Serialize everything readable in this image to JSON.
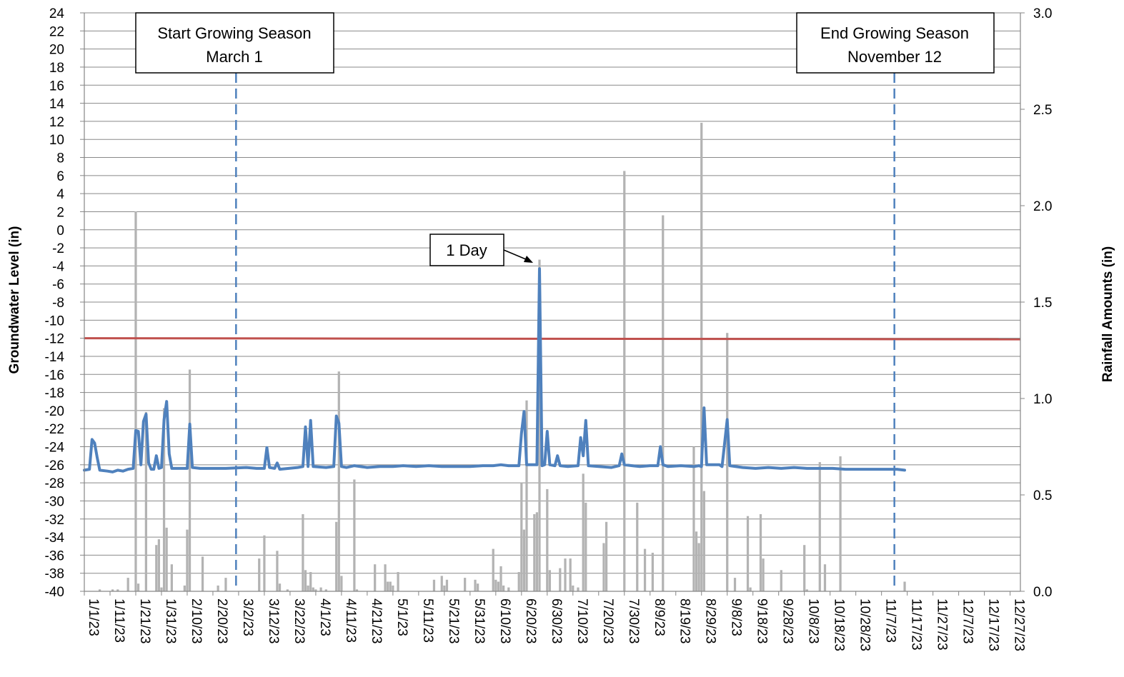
{
  "chart_data": {
    "type": "line",
    "x_axis": {
      "scale": "date",
      "min": "2023-01-01",
      "max": "2023-12-31",
      "tick_labels": [
        "1/1/23",
        "1/11/23",
        "1/21/23",
        "1/31/23",
        "2/10/23",
        "2/20/23",
        "3/2/23",
        "3/12/23",
        "3/22/23",
        "4/1/23",
        "4/11/23",
        "4/21/23",
        "5/1/23",
        "5/11/23",
        "5/21/23",
        "5/31/23",
        "6/10/23",
        "6/20/23",
        "6/30/23",
        "7/10/23",
        "7/20/23",
        "7/30/23",
        "8/9/23",
        "8/19/23",
        "8/29/23",
        "9/8/23",
        "9/18/23",
        "9/28/23",
        "10/8/23",
        "10/18/23",
        "10/28/23",
        "11/7/23",
        "11/17/23",
        "11/27/23",
        "12/7/23",
        "12/17/23",
        "12/27/23"
      ]
    },
    "y_axis_left": {
      "label": "Groundwater Level (in)",
      "min": -40,
      "max": 24,
      "tick_labels": [
        "24",
        "22",
        "20",
        "18",
        "16",
        "14",
        "12",
        "10",
        "8",
        "6",
        "4",
        "2",
        "0",
        "-2",
        "-4",
        "-6",
        "-8",
        "-10",
        "-12",
        "-14",
        "-16",
        "-18",
        "-20",
        "-22",
        "-24",
        "-26",
        "-28",
        "-30",
        "-32",
        "-34",
        "-36",
        "-38",
        "-40"
      ]
    },
    "y_axis_right": {
      "label": "Rainfall Amounts (in)",
      "min": 0,
      "max": 3.0,
      "tick_labels": [
        "3.0",
        "2.5",
        "2.0",
        "1.5",
        "1.0",
        "0.5",
        "0.0"
      ]
    },
    "grid": true,
    "reference_line": {
      "y": -12,
      "color": "#c0504d"
    },
    "annotations": [
      {
        "lines": [
          "Start Growing Season",
          "March 1"
        ],
        "date": "2023-03-01"
      },
      {
        "lines": [
          "End Growing Season",
          "November 12"
        ],
        "date": "2023-11-12"
      },
      {
        "text": "1 Day",
        "date": "2023-06-27",
        "y": -4
      }
    ],
    "colors": {
      "groundwater": "#4f81bd",
      "rainfall": "#b3b3b3",
      "reference": "#c0504d",
      "season_marker": "#4f81bd",
      "grid": "#898989"
    },
    "groundwater": [
      [
        "2023-01-01",
        -26.6
      ],
      [
        "2023-01-03",
        -26.5
      ],
      [
        "2023-01-04",
        -23.2
      ],
      [
        "2023-01-05",
        -23.6
      ],
      [
        "2023-01-06",
        -25.2
      ],
      [
        "2023-01-07",
        -26.6
      ],
      [
        "2023-01-10",
        -26.7
      ],
      [
        "2023-01-12",
        -26.8
      ],
      [
        "2023-01-14",
        -26.6
      ],
      [
        "2023-01-16",
        -26.7
      ],
      [
        "2023-01-18",
        -26.5
      ],
      [
        "2023-01-20",
        -26.4
      ],
      [
        "2023-01-21",
        -22.2
      ],
      [
        "2023-01-22",
        -22.3
      ],
      [
        "2023-01-23",
        -26.0
      ],
      [
        "2023-01-24",
        -21.2
      ],
      [
        "2023-01-25",
        -20.4
      ],
      [
        "2023-01-26",
        -25.8
      ],
      [
        "2023-01-27",
        -26.5
      ],
      [
        "2023-01-28",
        -26.5
      ],
      [
        "2023-01-29",
        -25.0
      ],
      [
        "2023-01-30",
        -26.4
      ],
      [
        "2023-01-31",
        -26.3
      ],
      [
        "2023-02-01",
        -21.0
      ],
      [
        "2023-02-02",
        -19.0
      ],
      [
        "2023-02-03",
        -24.8
      ],
      [
        "2023-02-04",
        -26.4
      ],
      [
        "2023-02-08",
        -26.4
      ],
      [
        "2023-02-10",
        -26.4
      ],
      [
        "2023-02-11",
        -21.5
      ],
      [
        "2023-02-12",
        -26.3
      ],
      [
        "2023-02-15",
        -26.4
      ],
      [
        "2023-02-20",
        -26.4
      ],
      [
        "2023-02-25",
        -26.4
      ],
      [
        "2023-03-05",
        -26.3
      ],
      [
        "2023-03-09",
        -26.4
      ],
      [
        "2023-03-12",
        -26.4
      ],
      [
        "2023-03-13",
        -24.1
      ],
      [
        "2023-03-14",
        -26.3
      ],
      [
        "2023-03-16",
        -26.4
      ],
      [
        "2023-03-17",
        -25.8
      ],
      [
        "2023-03-18",
        -26.5
      ],
      [
        "2023-03-25",
        -26.3
      ],
      [
        "2023-03-27",
        -26.2
      ],
      [
        "2023-03-28",
        -21.8
      ],
      [
        "2023-03-29",
        -26.2
      ],
      [
        "2023-03-30",
        -21.1
      ],
      [
        "2023-03-31",
        -26.2
      ],
      [
        "2023-04-05",
        -26.3
      ],
      [
        "2023-04-08",
        -26.2
      ],
      [
        "2023-04-09",
        -20.6
      ],
      [
        "2023-04-10",
        -21.4
      ],
      [
        "2023-04-11",
        -26.2
      ],
      [
        "2023-04-13",
        -26.3
      ],
      [
        "2023-04-16",
        -26.1
      ],
      [
        "2023-04-21",
        -26.3
      ],
      [
        "2023-04-26",
        -26.2
      ],
      [
        "2023-05-01",
        -26.2
      ],
      [
        "2023-05-05",
        -26.1
      ],
      [
        "2023-05-10",
        -26.2
      ],
      [
        "2023-05-15",
        -26.1
      ],
      [
        "2023-05-20",
        -26.2
      ],
      [
        "2023-05-25",
        -26.2
      ],
      [
        "2023-05-31",
        -26.2
      ],
      [
        "2023-06-05",
        -26.1
      ],
      [
        "2023-06-09",
        -26.1
      ],
      [
        "2023-06-12",
        -26.0
      ],
      [
        "2023-06-15",
        -26.1
      ],
      [
        "2023-06-19",
        -26.1
      ],
      [
        "2023-06-20",
        -22.5
      ],
      [
        "2023-06-21",
        -20.1
      ],
      [
        "2023-06-22",
        -26.0
      ],
      [
        "2023-06-24",
        -26.0
      ],
      [
        "2023-06-26",
        -26.0
      ],
      [
        "2023-06-27",
        -4.3
      ],
      [
        "2023-06-28",
        -26.1
      ],
      [
        "2023-06-29",
        -26.0
      ],
      [
        "2023-06-30",
        -22.3
      ],
      [
        "2023-07-01",
        -26.0
      ],
      [
        "2023-07-03",
        -26.1
      ],
      [
        "2023-07-04",
        -25.0
      ],
      [
        "2023-07-05",
        -26.1
      ],
      [
        "2023-07-08",
        -26.2
      ],
      [
        "2023-07-12",
        -26.1
      ],
      [
        "2023-07-13",
        -23.0
      ],
      [
        "2023-07-14",
        -25.0
      ],
      [
        "2023-07-15",
        -21.1
      ],
      [
        "2023-07-16",
        -26.1
      ],
      [
        "2023-07-20",
        -26.2
      ],
      [
        "2023-07-25",
        -26.3
      ],
      [
        "2023-07-28",
        -26.1
      ],
      [
        "2023-07-29",
        -24.8
      ],
      [
        "2023-07-30",
        -26.0
      ],
      [
        "2023-08-02",
        -26.1
      ],
      [
        "2023-08-05",
        -26.2
      ],
      [
        "2023-08-09",
        -26.1
      ],
      [
        "2023-08-12",
        -26.1
      ],
      [
        "2023-08-13",
        -24.0
      ],
      [
        "2023-08-14",
        -26.0
      ],
      [
        "2023-08-16",
        -26.2
      ],
      [
        "2023-08-21",
        -26.1
      ],
      [
        "2023-08-26",
        -26.2
      ],
      [
        "2023-08-28",
        -26.1
      ],
      [
        "2023-08-29",
        -26.2
      ],
      [
        "2023-08-30",
        -19.7
      ],
      [
        "2023-08-31",
        -26.0
      ],
      [
        "2023-09-05",
        -26.0
      ],
      [
        "2023-09-06",
        -26.2
      ],
      [
        "2023-09-08",
        -21.0
      ],
      [
        "2023-09-09",
        -26.1
      ],
      [
        "2023-09-14",
        -26.3
      ],
      [
        "2023-09-19",
        -26.4
      ],
      [
        "2023-09-24",
        -26.3
      ],
      [
        "2023-09-29",
        -26.4
      ],
      [
        "2023-10-04",
        -26.3
      ],
      [
        "2023-10-09",
        -26.4
      ],
      [
        "2023-10-14",
        -26.4
      ],
      [
        "2023-10-19",
        -26.4
      ],
      [
        "2023-10-24",
        -26.5
      ],
      [
        "2023-10-29",
        -26.5
      ],
      [
        "2023-11-03",
        -26.5
      ],
      [
        "2023-11-08",
        -26.5
      ],
      [
        "2023-11-13",
        -26.5
      ],
      [
        "2023-11-16",
        -26.6
      ]
    ],
    "rainfall": [
      [
        "2023-01-07",
        0.01
      ],
      [
        "2023-01-12",
        0.01
      ],
      [
        "2023-01-14",
        0.01
      ],
      [
        "2023-01-18",
        0.07
      ],
      [
        "2023-01-21",
        1.97
      ],
      [
        "2023-01-22",
        0.04
      ],
      [
        "2023-01-25",
        0.93
      ],
      [
        "2023-01-29",
        0.24
      ],
      [
        "2023-01-30",
        0.27
      ],
      [
        "2023-01-31",
        0.02
      ],
      [
        "2023-02-01",
        0.95
      ],
      [
        "2023-02-02",
        0.33
      ],
      [
        "2023-02-04",
        0.14
      ],
      [
        "2023-02-09",
        0.03
      ],
      [
        "2023-02-10",
        0.32
      ],
      [
        "2023-02-11",
        1.15
      ],
      [
        "2023-02-16",
        0.18
      ],
      [
        "2023-02-22",
        0.03
      ],
      [
        "2023-02-25",
        0.07
      ],
      [
        "2023-03-10",
        0.17
      ],
      [
        "2023-03-12",
        0.29
      ],
      [
        "2023-03-17",
        0.21
      ],
      [
        "2023-03-18",
        0.04
      ],
      [
        "2023-03-21",
        0.01
      ],
      [
        "2023-03-27",
        0.4
      ],
      [
        "2023-03-28",
        0.11
      ],
      [
        "2023-03-29",
        0.03
      ],
      [
        "2023-03-30",
        0.1
      ],
      [
        "2023-03-31",
        0.02
      ],
      [
        "2023-04-01",
        0.01
      ],
      [
        "2023-04-03",
        0.02
      ],
      [
        "2023-04-05",
        0.01
      ],
      [
        "2023-04-09",
        0.36
      ],
      [
        "2023-04-10",
        1.14
      ],
      [
        "2023-04-11",
        0.08
      ],
      [
        "2023-04-16",
        0.58
      ],
      [
        "2023-04-17",
        0.01
      ],
      [
        "2023-04-24",
        0.14
      ],
      [
        "2023-04-28",
        0.14
      ],
      [
        "2023-04-29",
        0.05
      ],
      [
        "2023-04-30",
        0.05
      ],
      [
        "2023-05-01",
        0.03
      ],
      [
        "2023-05-03",
        0.1
      ],
      [
        "2023-05-17",
        0.06
      ],
      [
        "2023-05-20",
        0.08
      ],
      [
        "2023-05-21",
        0.03
      ],
      [
        "2023-05-22",
        0.06
      ],
      [
        "2023-05-29",
        0.07
      ],
      [
        "2023-06-02",
        0.06
      ],
      [
        "2023-06-03",
        0.04
      ],
      [
        "2023-06-09",
        0.22
      ],
      [
        "2023-06-10",
        0.06
      ],
      [
        "2023-06-11",
        0.05
      ],
      [
        "2023-06-12",
        0.13
      ],
      [
        "2023-06-13",
        0.03
      ],
      [
        "2023-06-15",
        0.02
      ],
      [
        "2023-06-19",
        0.1
      ],
      [
        "2023-06-20",
        0.56
      ],
      [
        "2023-06-21",
        0.32
      ],
      [
        "2023-06-22",
        0.99
      ],
      [
        "2023-06-25",
        0.4
      ],
      [
        "2023-06-26",
        0.41
      ],
      [
        "2023-06-27",
        1.72
      ],
      [
        "2023-06-30",
        0.53
      ],
      [
        "2023-07-01",
        0.11
      ],
      [
        "2023-07-05",
        0.12
      ],
      [
        "2023-07-07",
        0.17
      ],
      [
        "2023-07-09",
        0.17
      ],
      [
        "2023-07-10",
        0.03
      ],
      [
        "2023-07-12",
        0.02
      ],
      [
        "2023-07-14",
        0.61
      ],
      [
        "2023-07-15",
        0.46
      ],
      [
        "2023-07-22",
        0.25
      ],
      [
        "2023-07-23",
        0.36
      ],
      [
        "2023-07-30",
        2.18
      ],
      [
        "2023-08-04",
        0.46
      ],
      [
        "2023-08-07",
        0.22
      ],
      [
        "2023-08-10",
        0.2
      ],
      [
        "2023-08-14",
        1.95
      ],
      [
        "2023-08-26",
        0.75
      ],
      [
        "2023-08-27",
        0.31
      ],
      [
        "2023-08-28",
        0.25
      ],
      [
        "2023-08-29",
        2.43
      ],
      [
        "2023-08-30",
        0.52
      ],
      [
        "2023-09-08",
        1.34
      ],
      [
        "2023-09-11",
        0.07
      ],
      [
        "2023-09-16",
        0.39
      ],
      [
        "2023-09-17",
        0.02
      ],
      [
        "2023-09-21",
        0.4
      ],
      [
        "2023-09-22",
        0.17
      ],
      [
        "2023-09-29",
        0.11
      ],
      [
        "2023-10-08",
        0.24
      ],
      [
        "2023-10-09",
        0.01
      ],
      [
        "2023-10-14",
        0.67
      ],
      [
        "2023-10-16",
        0.14
      ],
      [
        "2023-10-22",
        0.7
      ],
      [
        "2023-11-16",
        0.05
      ]
    ]
  }
}
